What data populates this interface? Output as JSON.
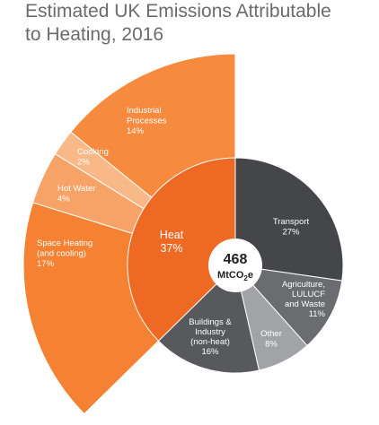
{
  "chart_data": {
    "type": "pie",
    "title_lines": [
      "Estimated UK Emissions Attributable",
      "to Heating, 2016"
    ],
    "center": {
      "value": "468",
      "unit_main": "MtCO",
      "unit_sub": "2",
      "unit_end": "e"
    },
    "slices": [
      {
        "name_lines": [
          "Transport"
        ],
        "pct_label": "27%",
        "value": 27,
        "color": "#45464a"
      },
      {
        "name_lines": [
          "Agriculture,",
          "LULUCF",
          "and Waste"
        ],
        "pct_label": "11%",
        "value": 11,
        "color": "#6b6c70"
      },
      {
        "name_lines": [
          "Other"
        ],
        "pct_label": "8%",
        "value": 8,
        "color": "#a2a3a7"
      },
      {
        "name_lines": [
          "Buildings &",
          "Industry",
          "(non-heat)"
        ],
        "pct_label": "16%",
        "value": 16,
        "color": "#58595d"
      },
      {
        "name_lines": [
          "Heat"
        ],
        "pct_label": "37%",
        "value": 37,
        "color": "#ee6a24"
      }
    ],
    "heat_breakdown": [
      {
        "name_lines": [
          "Space Heating",
          "(and cooling)"
        ],
        "pct_label": "17%",
        "value": 17,
        "color": "#f58233"
      },
      {
        "name_lines": [
          "Hot Water"
        ],
        "pct_label": "4%",
        "value": 4,
        "color": "#f7a266"
      },
      {
        "name_lines": [
          "Cooking"
        ],
        "pct_label": "2%",
        "value": 2,
        "color": "#f9b887"
      },
      {
        "name_lines": [
          "Industrial",
          "Processes"
        ],
        "pct_label": "14%",
        "value": 14,
        "color": "#f68b40"
      }
    ]
  }
}
